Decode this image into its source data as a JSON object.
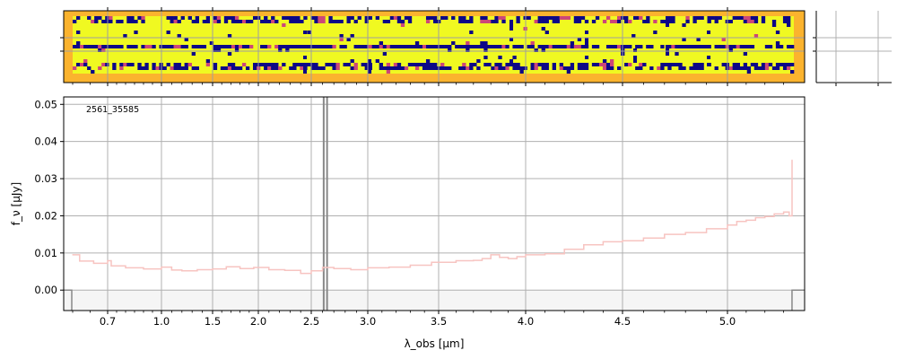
{
  "chart_data": [
    {
      "type": "heatmap",
      "title": "",
      "description_rows": [
        "background",
        "bar-top",
        "noise",
        "noise",
        "bar-mid",
        "noise",
        "noise",
        "bar-bot",
        "background"
      ],
      "colors": {
        "background": "#fbb32e",
        "high": "#f0f921",
        "low": "#0d0887",
        "mid": "#cc4778"
      },
      "grid": true
    },
    {
      "type": "line",
      "label": "2561_35585",
      "ylabel": "f_ν [μJy]",
      "xlabel": "λ_obs [μm]",
      "ylim": [
        -0.0055,
        0.052
      ],
      "yticks": [
        "0.00",
        "0.01",
        "0.02",
        "0.03",
        "0.04",
        "0.05"
      ],
      "xticks": [
        "0.7",
        "1.0",
        "1.5",
        "2.0",
        "2.5",
        "3.0",
        "3.5",
        "4.0",
        "4.5",
        "5.0"
      ],
      "grid": true,
      "line_color": "#f7c4c1",
      "series": [
        {
          "values": [
            [
              0.6,
              0.0095
            ],
            [
              0.62,
              0.0078
            ],
            [
              0.66,
              0.0072
            ],
            [
              0.7,
              0.0079
            ],
            [
              0.72,
              0.0065
            ],
            [
              0.8,
              0.006
            ],
            [
              0.9,
              0.0057
            ],
            [
              1.0,
              0.0062
            ],
            [
              1.1,
              0.0054
            ],
            [
              1.2,
              0.0052
            ],
            [
              1.35,
              0.0055
            ],
            [
              1.5,
              0.0057
            ],
            [
              1.65,
              0.0063
            ],
            [
              1.8,
              0.0058
            ],
            [
              1.95,
              0.0061
            ],
            [
              2.1,
              0.0055
            ],
            [
              2.25,
              0.0053
            ],
            [
              2.4,
              0.0045
            ],
            [
              2.5,
              0.0052
            ],
            [
              2.6,
              0.0061
            ],
            [
              2.7,
              0.0058
            ],
            [
              2.85,
              0.0055
            ],
            [
              3.0,
              0.006
            ],
            [
              3.15,
              0.0062
            ],
            [
              3.3,
              0.0067
            ],
            [
              3.45,
              0.0075
            ],
            [
              3.6,
              0.0079
            ],
            [
              3.7,
              0.008
            ],
            [
              3.75,
              0.0085
            ],
            [
              3.8,
              0.0095
            ],
            [
              3.85,
              0.0088
            ],
            [
              3.9,
              0.0085
            ],
            [
              3.95,
              0.009
            ],
            [
              4.0,
              0.0095
            ],
            [
              4.1,
              0.0098
            ],
            [
              4.2,
              0.011
            ],
            [
              4.3,
              0.0122
            ],
            [
              4.4,
              0.013
            ],
            [
              4.5,
              0.0133
            ],
            [
              4.6,
              0.014
            ],
            [
              4.7,
              0.015
            ],
            [
              4.8,
              0.0155
            ],
            [
              4.9,
              0.0165
            ],
            [
              5.0,
              0.0175
            ],
            [
              5.05,
              0.0185
            ],
            [
              5.1,
              0.0188
            ],
            [
              5.15,
              0.0195
            ],
            [
              5.2,
              0.0198
            ],
            [
              5.25,
              0.0205
            ],
            [
              5.3,
              0.021
            ],
            [
              5.33,
              0.02
            ],
            [
              5.345,
              0.035
            ]
          ]
        }
      ],
      "vlines": [
        2.61,
        2.64
      ]
    }
  ]
}
